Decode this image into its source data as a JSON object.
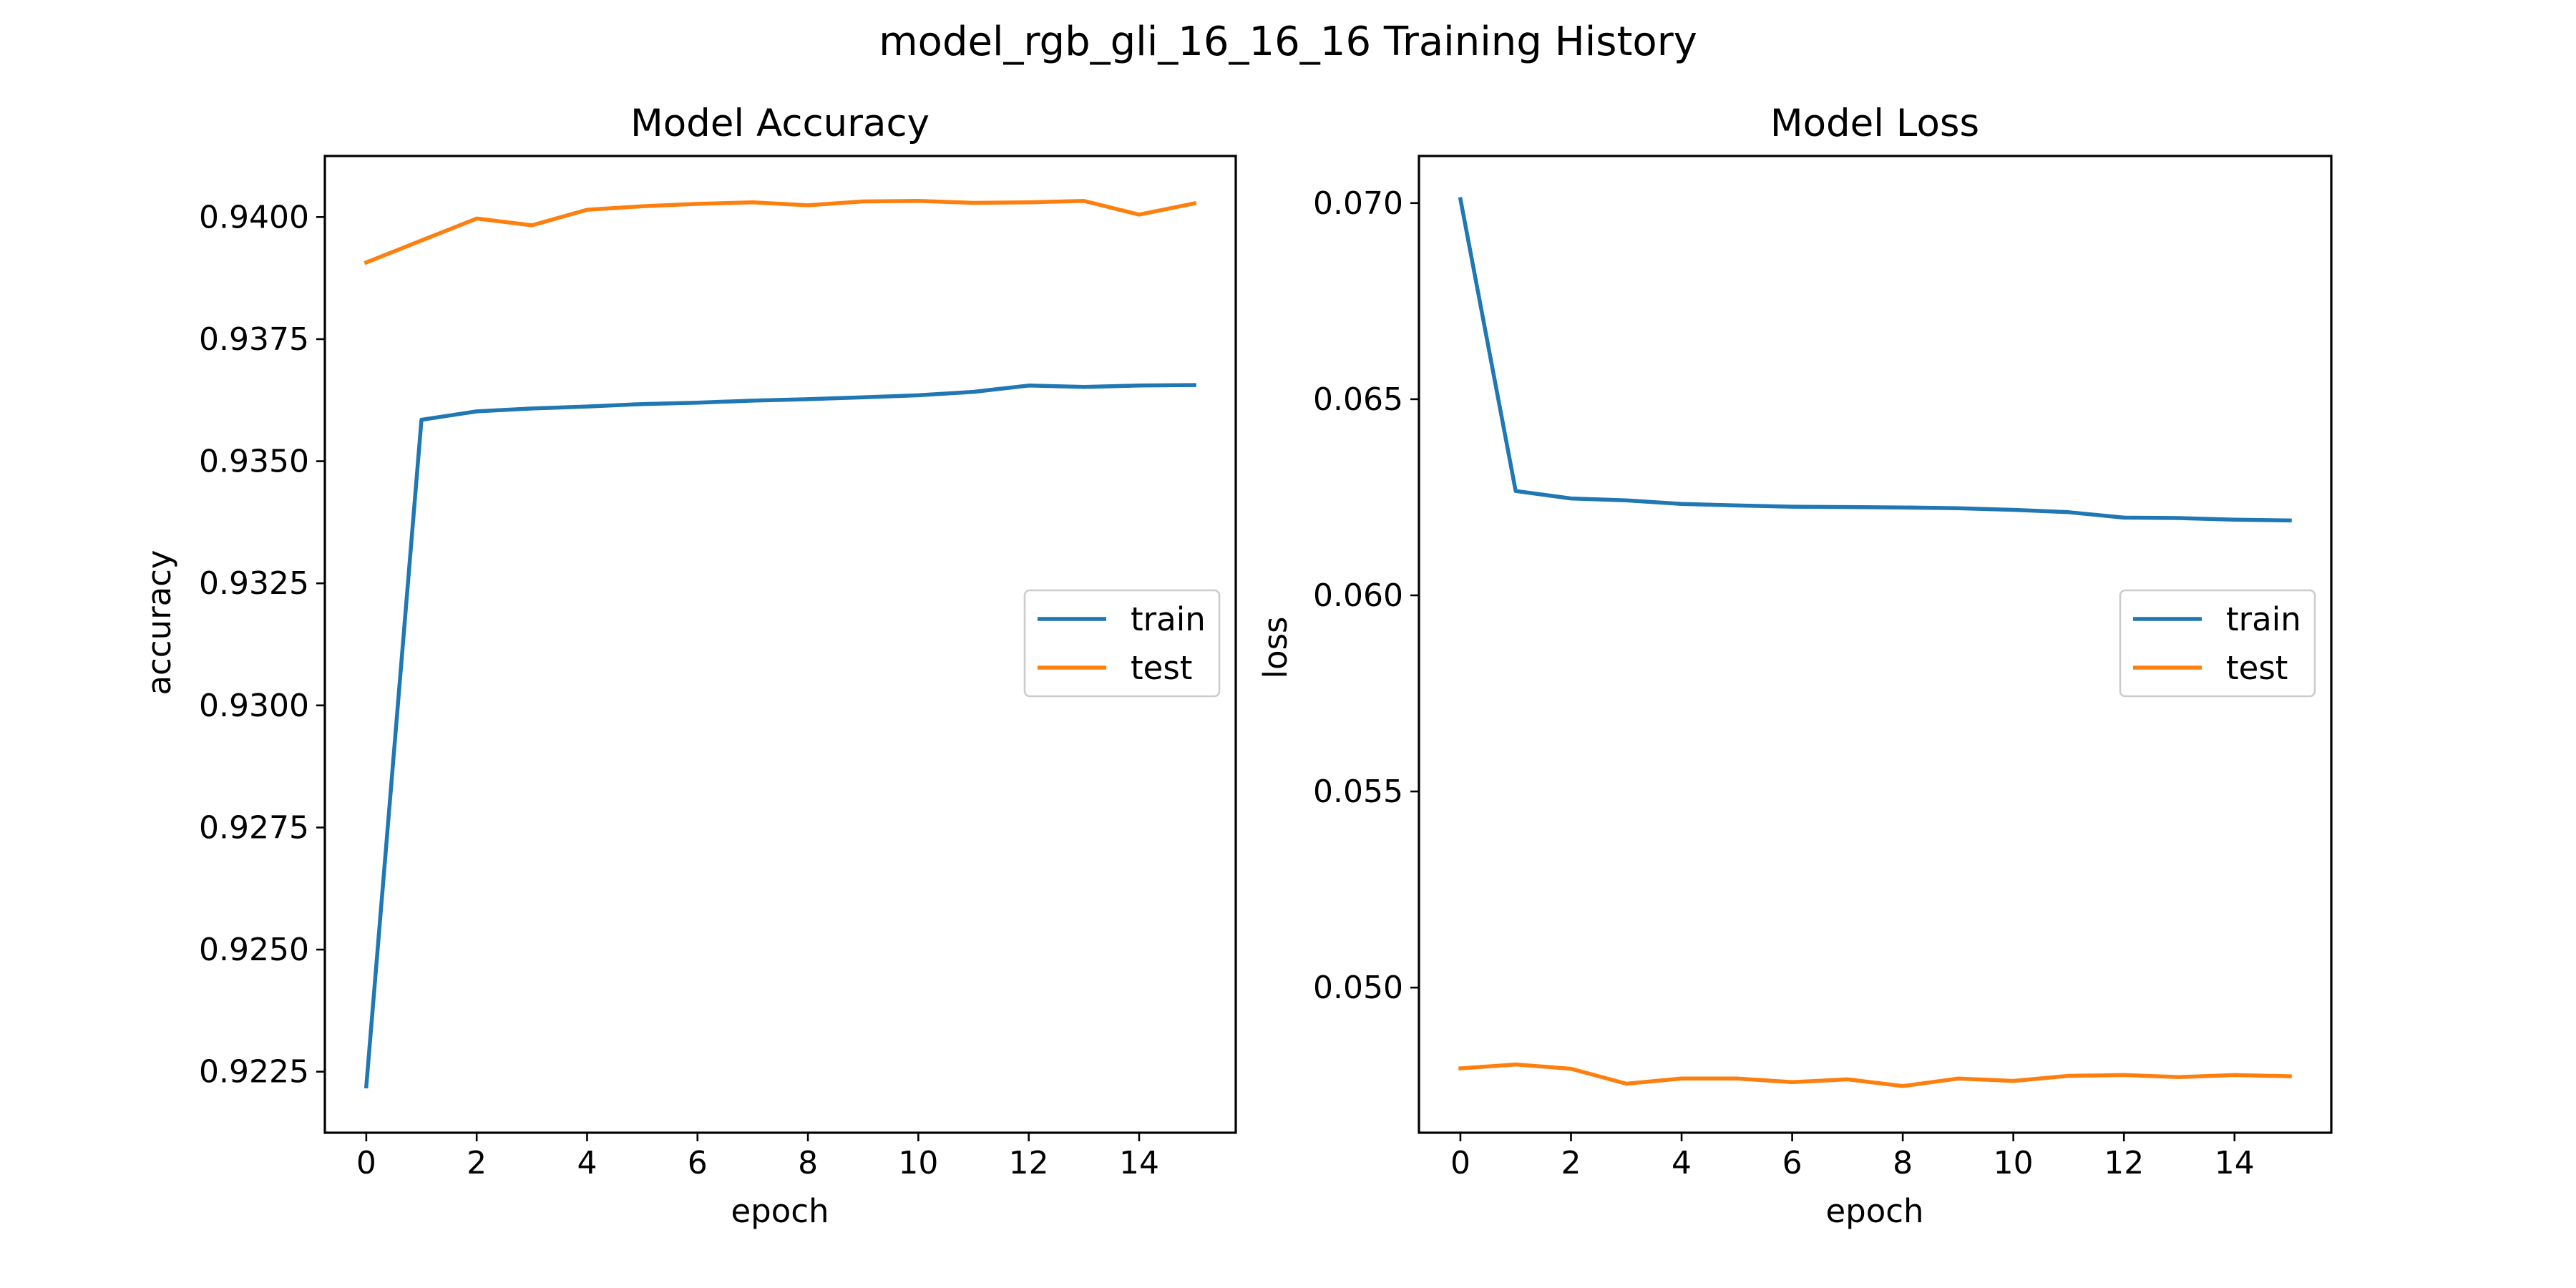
{
  "figure_title": "model_rgb_gli_16_16_16 Training History",
  "colors": {
    "train": "#1f77b4",
    "test": "#ff7f0e"
  },
  "chart_data": [
    {
      "type": "line",
      "title": "Model Accuracy",
      "xlabel": "epoch",
      "ylabel": "accuracy",
      "xlim": [
        -0.75,
        15.75
      ],
      "ylim": [
        0.92125,
        0.94125
      ],
      "xticks": [
        0,
        2,
        4,
        6,
        8,
        10,
        12,
        14
      ],
      "xtick_labels": [
        "0",
        "2",
        "4",
        "6",
        "8",
        "10",
        "12",
        "14"
      ],
      "yticks": [
        0.9225,
        0.925,
        0.9275,
        0.93,
        0.9325,
        0.935,
        0.9375,
        0.94
      ],
      "ytick_labels": [
        "0.9225",
        "0.9250",
        "0.9275",
        "0.9300",
        "0.9325",
        "0.9350",
        "0.9375",
        "0.9400"
      ],
      "legend_location": "center-right",
      "x": [
        0,
        1,
        2,
        3,
        4,
        5,
        6,
        7,
        8,
        9,
        10,
        11,
        12,
        13,
        14,
        15
      ],
      "series": [
        {
          "name": "train",
          "color_key": "train",
          "values": [
            0.9222,
            0.93585,
            0.93602,
            0.93608,
            0.93612,
            0.93617,
            0.9362,
            0.93624,
            0.93627,
            0.93631,
            0.93635,
            0.93642,
            0.93655,
            0.93652,
            0.93655,
            0.93656
          ]
        },
        {
          "name": "test",
          "color_key": "test",
          "values": [
            0.93907,
            0.93952,
            0.93997,
            0.93983,
            0.94015,
            0.94022,
            0.94027,
            0.9403,
            0.94024,
            0.94032,
            0.94033,
            0.94029,
            0.9403,
            0.94033,
            0.94005,
            0.94028
          ]
        }
      ]
    },
    {
      "type": "line",
      "title": "Model Loss",
      "xlabel": "epoch",
      "ylabel": "loss",
      "xlim": [
        -0.75,
        15.75
      ],
      "ylim": [
        0.0463,
        0.0712
      ],
      "xticks": [
        0,
        2,
        4,
        6,
        8,
        10,
        12,
        14
      ],
      "xtick_labels": [
        "0",
        "2",
        "4",
        "6",
        "8",
        "10",
        "12",
        "14"
      ],
      "yticks": [
        0.05,
        0.055,
        0.06,
        0.065,
        0.07
      ],
      "ytick_labels": [
        "0.050",
        "0.055",
        "0.060",
        "0.065",
        "0.070"
      ],
      "legend_location": "center-right",
      "x": [
        0,
        1,
        2,
        3,
        4,
        5,
        6,
        7,
        8,
        9,
        10,
        11,
        12,
        13,
        14,
        15
      ],
      "series": [
        {
          "name": "train",
          "color_key": "train",
          "values": [
            0.0701,
            0.06266,
            0.06247,
            0.06242,
            0.06233,
            0.06229,
            0.06226,
            0.06225,
            0.06224,
            0.06222,
            0.06218,
            0.06212,
            0.06198,
            0.06197,
            0.06193,
            0.06191
          ]
        },
        {
          "name": "test",
          "color_key": "test",
          "values": [
            0.04794,
            0.04804,
            0.04793,
            0.04755,
            0.04768,
            0.04768,
            0.04759,
            0.04766,
            0.04749,
            0.04768,
            0.04762,
            0.04775,
            0.04777,
            0.04772,
            0.04777,
            0.04774
          ]
        }
      ]
    }
  ]
}
